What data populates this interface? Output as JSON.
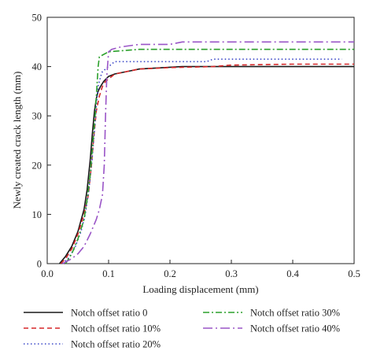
{
  "chart_data": {
    "type": "line",
    "xlabel": "Loading displacement (mm)",
    "ylabel": "Newly created crack length (mm)",
    "xlim": [
      0,
      0.5
    ],
    "ylim": [
      0,
      50
    ],
    "xticks": [
      0,
      0.1,
      0.2,
      0.3,
      0.4,
      0.5
    ],
    "xtick_labels": [
      "0.0",
      "0.1",
      "0.2",
      "0.3",
      "0.4",
      "0.5"
    ],
    "yticks": [
      0,
      10,
      20,
      30,
      40,
      50
    ],
    "ytick_labels": [
      "0",
      "10",
      "20",
      "30",
      "40",
      "50"
    ],
    "grid": false,
    "legend_position": "bottom",
    "series": [
      {
        "name": "Notch offset ratio 0",
        "color": "#1a1a1a",
        "dash": "solid",
        "x": [
          0.02,
          0.03,
          0.04,
          0.05,
          0.06,
          0.065,
          0.07,
          0.074,
          0.077,
          0.08,
          0.083,
          0.087,
          0.092,
          0.1,
          0.11,
          0.13,
          0.15,
          0.22,
          0.3,
          0.4,
          0.5
        ],
        "y": [
          0,
          1.5,
          3.5,
          6.5,
          11,
          15,
          21,
          27,
          31,
          33.5,
          35,
          36,
          37,
          38,
          38.5,
          39,
          39.5,
          40,
          40,
          40,
          40
        ]
      },
      {
        "name": "Notch offset ratio 10%",
        "color": "#d62728",
        "dash": "6,4",
        "x": [
          0.022,
          0.03,
          0.04,
          0.05,
          0.06,
          0.067,
          0.072,
          0.076,
          0.08,
          0.085,
          0.09,
          0.095,
          0.1,
          0.11,
          0.13,
          0.15,
          0.2,
          0.27,
          0.3,
          0.4,
          0.5
        ],
        "y": [
          0,
          1,
          3,
          6,
          10,
          14,
          20,
          26,
          31,
          34,
          36,
          37,
          37.5,
          38.5,
          39,
          39.5,
          39.8,
          40,
          40.3,
          40.5,
          40.5
        ]
      },
      {
        "name": "Notch offset ratio 20%",
        "color": "#3b48c8",
        "dash": "1.5,3",
        "x": [
          0.025,
          0.035,
          0.045,
          0.055,
          0.062,
          0.068,
          0.073,
          0.077,
          0.08,
          0.083,
          0.087,
          0.09,
          0.1,
          0.11,
          0.2,
          0.26,
          0.27,
          0.3,
          0.35,
          0.4,
          0.48
        ],
        "y": [
          0,
          1.2,
          3.2,
          6.5,
          10,
          15,
          21,
          27,
          32,
          36,
          38,
          39,
          40,
          41,
          41,
          41,
          41.5,
          41.5,
          41.5,
          41.5,
          41.5
        ]
      },
      {
        "name": "Notch offset ratio 30%",
        "color": "#2ca02c",
        "dash": "8,3,2,3",
        "x": [
          0.03,
          0.04,
          0.05,
          0.06,
          0.065,
          0.07,
          0.074,
          0.078,
          0.081,
          0.083,
          0.085,
          0.1,
          0.15,
          0.2,
          0.3,
          0.4,
          0.5
        ],
        "y": [
          0,
          2,
          5,
          9,
          13,
          18,
          24,
          30,
          36,
          40,
          42,
          43,
          43.5,
          43.5,
          43.5,
          43.5,
          43.5
        ]
      },
      {
        "name": "Notch offset ratio 40%",
        "color": "#9a55c7",
        "dash": "12,4,2,4",
        "x": [
          0.025,
          0.04,
          0.05,
          0.06,
          0.07,
          0.08,
          0.085,
          0.09,
          0.093,
          0.095,
          0.097,
          0.1,
          0.105,
          0.12,
          0.15,
          0.2,
          0.22,
          0.3,
          0.4,
          0.5
        ],
        "y": [
          0,
          1,
          2,
          3.5,
          6,
          9,
          11,
          14,
          20,
          30,
          38,
          43,
          43.5,
          44,
          44.5,
          44.5,
          45,
          45,
          45,
          45
        ]
      }
    ]
  }
}
